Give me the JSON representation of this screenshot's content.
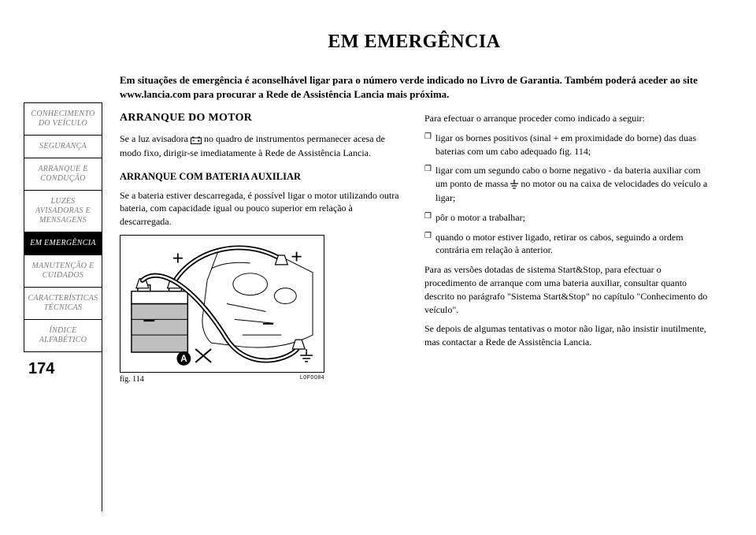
{
  "sidebar": {
    "items": [
      {
        "label": "CONHECIMENTO\nDO VEÍCULO"
      },
      {
        "label": "SEGURANÇA"
      },
      {
        "label": "ARRANQUE E\nCONDUÇÃO"
      },
      {
        "label": "LUZES\nAVISADORAS E\nMENSAGENS"
      },
      {
        "label": "EM EMERGÊNCIA"
      },
      {
        "label": "MANUTENÇÃO E\nCUIDADOS"
      },
      {
        "label": "CARACTERÍSTICAS\nTÉCNICAS"
      },
      {
        "label": "ÍNDICE\nALFABÉTICO"
      }
    ],
    "active_index": 4,
    "page_number": "174",
    "styles": {
      "inactive_text_color": "#7a7a7a",
      "active_bg": "#000000",
      "active_text": "#ffffff",
      "item_fontsize": 10,
      "page_fontsize": 20
    }
  },
  "title": "EM EMERGÊNCIA",
  "intro": "Em situações de emergência é aconselhável ligar para o número verde indicado no Livro de Garantia. Também poderá aceder ao site www.lancia.com para procurar a Rede de Assistência Lancia mais próxima.",
  "left": {
    "heading": "ARRANQUE DO MOTOR",
    "p1_before": "Se a luz avisadora ",
    "p1_after": " no quadro de instrumentos permanecer acesa de modo fixo, dirigir-se imediatamente à Rede de Assistência Lancia.",
    "sub": "ARRANQUE COM BATERIA AUXILIAR",
    "p2": "Se a bateria estiver descarregada, é possível ligar o motor utilizando outra bateria, com capacidade igual ou pouco superior em relação à descarregada."
  },
  "right": {
    "lead": "Para efectuar o arranque proceder como indicado a seguir:",
    "items": [
      "ligar os bornes positivos (sinal + em proximidade do borne) das duas baterias com um cabo adequado fig. 114;",
      null,
      "pôr o motor a trabalhar;",
      "quando o motor estiver ligado, retirar os cabos, seguindo a ordem contrária em relação à anterior."
    ],
    "item2_before": "ligar com um segundo cabo o borne negativo - da bateria auxiliar com um ponto de massa ",
    "item2_after": " no motor ou na caixa de velocidades do veículo a ligar;",
    "p_after1": "Para as versões dotadas de sistema Start&Stop, para efectuar o procedimento de arranque com uma bateria auxiliar, consultar quanto descrito no parágrafo \"Sistema Start&Stop\" no capítulo \"Conhecimento do veículo\".",
    "p_after2": "Se depois de algumas tentativas o motor não ligar, não insistir inutilmente, mas contactar a Rede de Assistência Lancia."
  },
  "figure": {
    "label": "fig. 114",
    "id": "L0F0084",
    "letter": "A",
    "colors": {
      "stroke": "#000000",
      "fill_gray": "#bfbfbf",
      "white": "#ffffff"
    }
  },
  "typography": {
    "title_fontsize": 24,
    "intro_fontsize": 13,
    "body_fontsize": 12,
    "heading_fontsize": 14,
    "sub_fontsize": 12.5,
    "font_family": "Times New Roman"
  },
  "colors": {
    "background": "#ffffff",
    "text": "#000000"
  }
}
